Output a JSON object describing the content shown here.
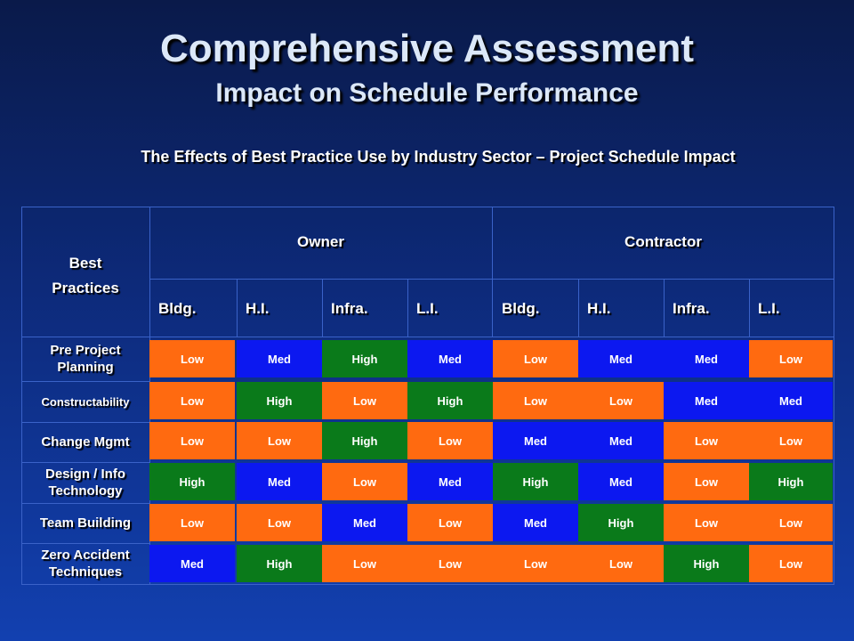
{
  "title": "Comprehensive Assessment",
  "subtitle": "Impact on Schedule Performance",
  "caption": "The Effects of Best Practice Use by Industry Sector – Project Schedule Impact",
  "table": {
    "corner_line1": "Best",
    "corner_line2": "Practices",
    "groups": [
      "Owner",
      "Contractor"
    ],
    "sectors": [
      "Bldg.",
      "H.I.",
      "Infra.",
      "L.I.",
      "Bldg.",
      "H.I.",
      "Infra.",
      "L.I."
    ],
    "rows": [
      {
        "label": "Pre Project Planning",
        "values": [
          "Low",
          "Med",
          "High",
          "Med",
          "Low",
          "Med",
          "Med",
          "Low"
        ]
      },
      {
        "label": "Constructability",
        "values": [
          "Low",
          "High",
          "Low",
          "High",
          "Low",
          "Low",
          "Med",
          "Med"
        ]
      },
      {
        "label": "Change Mgmt",
        "values": [
          "Low",
          "Low",
          "High",
          "Low",
          "Med",
          "Med",
          "Low",
          "Low"
        ]
      },
      {
        "label": "Design / Info Technology",
        "values": [
          "High",
          "Med",
          "Low",
          "Med",
          "High",
          "Med",
          "Low",
          "High"
        ]
      },
      {
        "label": "Team Building",
        "values": [
          "Low",
          "Low",
          "Med",
          "Low",
          "Med",
          "High",
          "Low",
          "Low"
        ]
      },
      {
        "label": "Zero Accident Techniques",
        "values": [
          "Med",
          "High",
          "Low",
          "Low",
          "Low",
          "Low",
          "High",
          "Low"
        ]
      }
    ]
  },
  "colors": {
    "Low": "#ff6a10",
    "Med": "#0c18f0",
    "High": "#0a7a1a",
    "grid": "#3a62c8"
  }
}
